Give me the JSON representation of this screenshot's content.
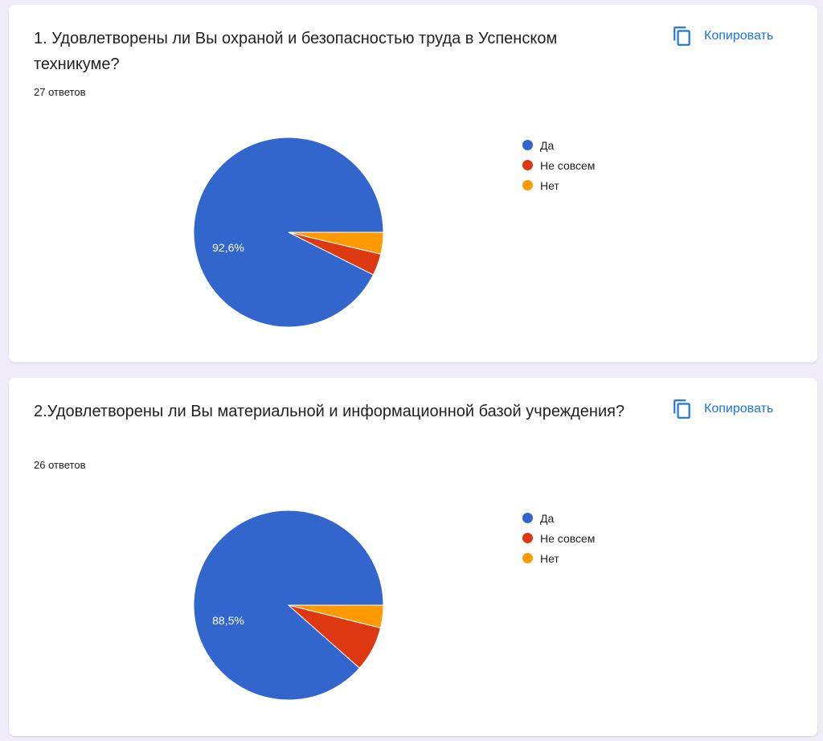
{
  "copy_label": "Копировать",
  "colors": {
    "page_background": "#f0ebf8",
    "card_background": "#ffffff",
    "accent": "#1a73e8",
    "series": [
      "#3366cc",
      "#dc3912",
      "#ff9900"
    ]
  },
  "chart_data": [
    {
      "type": "pie",
      "title": "1. Удовлетворены ли Вы охраной и безопасностью труда в Успенском техникуме?",
      "subtitle": "27 ответов",
      "categories": [
        "Да",
        "Не совсем",
        "Нет"
      ],
      "values": [
        25,
        1,
        1
      ],
      "percentages": [
        92.6,
        3.7,
        3.7
      ],
      "slice_labels": [
        "92,6%",
        "",
        ""
      ],
      "legend_position": "right"
    },
    {
      "type": "pie",
      "title": "2.Удовлетворены ли Вы материальной и информационной базой учреждения?",
      "subtitle": "26 ответов",
      "categories": [
        "Да",
        "Не совсем",
        "Нет"
      ],
      "values": [
        23,
        2,
        1
      ],
      "percentages": [
        88.5,
        7.7,
        3.8
      ],
      "slice_labels": [
        "88,5%",
        "",
        ""
      ],
      "legend_position": "right"
    }
  ]
}
